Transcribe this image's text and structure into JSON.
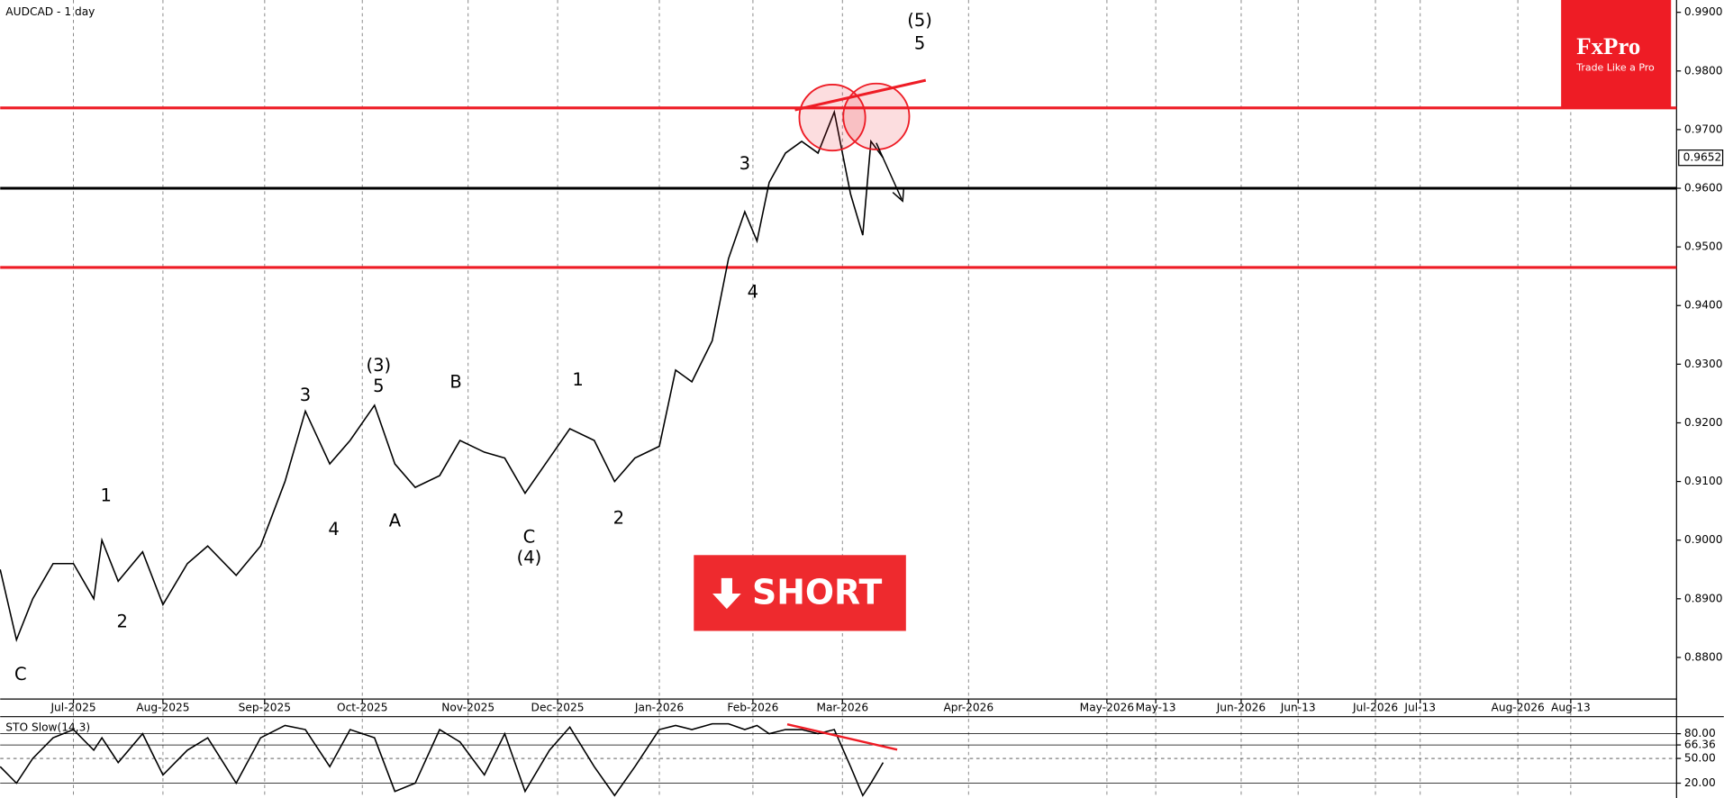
{
  "chart_data": [
    {
      "type": "line",
      "title": "AUDCAD - 1 day",
      "x": [
        -18,
        -14,
        -10,
        -5,
        0,
        5,
        7,
        11,
        17,
        22,
        28,
        33,
        40,
        46,
        52,
        57,
        63,
        68,
        74,
        79,
        84,
        90,
        95,
        101,
        106,
        111,
        117,
        122,
        128,
        133,
        138,
        144,
        148,
        152,
        157,
        161,
        165,
        168,
        171,
        175,
        179,
        183,
        187,
        191,
        194,
        196,
        199
      ],
      "series": [
        {
          "color": "#000000",
          "values": [
            0.895,
            0.883,
            0.89,
            0.896,
            0.896,
            0.89,
            0.9,
            0.893,
            0.898,
            0.889,
            0.896,
            0.899,
            0.894,
            0.899,
            0.91,
            0.922,
            0.913,
            0.917,
            0.923,
            0.913,
            0.909,
            0.911,
            0.917,
            0.915,
            0.914,
            0.908,
            0.914,
            0.919,
            0.917,
            0.91,
            0.914,
            0.916,
            0.929,
            0.927,
            0.934,
            0.948,
            0.956,
            0.951,
            0.961,
            0.966,
            0.968,
            0.966,
            0.973,
            0.959,
            0.952,
            0.968,
            0.9652
          ]
        }
      ],
      "xlim": [
        -18,
        394
      ],
      "ylim": [
        0.8729,
        0.9921
      ],
      "xticks": [
        {
          "value": 0,
          "label": "Jul-2025"
        },
        {
          "value": 22,
          "label": "Aug-2025"
        },
        {
          "value": 47,
          "label": "Sep-2025"
        },
        {
          "value": 71,
          "label": "Oct-2025"
        },
        {
          "value": 97,
          "label": "Nov-2025"
        },
        {
          "value": 119,
          "label": "Dec-2025"
        },
        {
          "value": 144,
          "label": "Jan-2026"
        },
        {
          "value": 167,
          "label": "Feb-2026"
        },
        {
          "value": 189,
          "label": "Mar-2026"
        },
        {
          "value": 220,
          "label": "Apr-2026"
        },
        {
          "value": 254,
          "label": "May-2026"
        },
        {
          "value": 266,
          "label": "May-13"
        },
        {
          "value": 287,
          "label": "Jun-2026"
        },
        {
          "value": 301,
          "label": "Jun-13"
        },
        {
          "value": 320,
          "label": "Jul-2026"
        },
        {
          "value": 331,
          "label": "Jul-13"
        },
        {
          "value": 355,
          "label": "Aug-2026"
        },
        {
          "value": 368,
          "label": "Aug-13"
        }
      ],
      "yticks": [
        {
          "value": 0.88,
          "label": "0.8800"
        },
        {
          "value": 0.89,
          "label": "0.8900"
        },
        {
          "value": 0.9,
          "label": "0.9000"
        },
        {
          "value": 0.91,
          "label": "0.9100"
        },
        {
          "value": 0.92,
          "label": "0.9200"
        },
        {
          "value": 0.93,
          "label": "0.9300"
        },
        {
          "value": 0.94,
          "label": "0.9400"
        },
        {
          "value": 0.95,
          "label": "0.9500"
        },
        {
          "value": 0.96,
          "label": "0.9600"
        },
        {
          "value": 0.97,
          "label": "0.9700"
        },
        {
          "value": 0.98,
          "label": "0.9800"
        },
        {
          "value": 0.99,
          "label": "0.9900"
        }
      ],
      "levels": [
        {
          "value": 0.9737,
          "color": "#ee1c25"
        },
        {
          "value": 0.96,
          "color": "#000000"
        },
        {
          "value": 0.9465,
          "color": "#ee1c25"
        }
      ],
      "last_price": {
        "value": 0.9652,
        "label": "0.9652"
      },
      "grid": true,
      "annotations": [
        {
          "text": "(5)",
          "x": 208,
          "y": 0.9885
        },
        {
          "text": "5",
          "x": 208,
          "y": 0.9846
        },
        {
          "text": "(3)",
          "x": 75,
          "y": 0.9297
        },
        {
          "text": "5",
          "x": 75,
          "y": 0.9261
        },
        {
          "text": "3",
          "x": 57,
          "y": 0.9246
        },
        {
          "text": "4",
          "x": 64,
          "y": 0.9017
        },
        {
          "text": "A",
          "x": 79,
          "y": 0.9032
        },
        {
          "text": "B",
          "x": 94,
          "y": 0.9268
        },
        {
          "text": "C",
          "x": 112,
          "y": 0.9004
        },
        {
          "text": "(4)",
          "x": 112,
          "y": 0.8969
        },
        {
          "text": "1",
          "x": 124,
          "y": 0.9272
        },
        {
          "text": "2",
          "x": 134,
          "y": 0.9036
        },
        {
          "text": "3",
          "x": 165,
          "y": 0.9641
        },
        {
          "text": "4",
          "x": 167,
          "y": 0.9422
        },
        {
          "text": "1",
          "x": 8,
          "y": 0.9075
        },
        {
          "text": "2",
          "x": 12,
          "y": 0.886
        },
        {
          "text": "C",
          "x": -13,
          "y": 0.877
        }
      ]
    },
    {
      "type": "line",
      "title": "STO Slow(14,3)",
      "x": [
        -18,
        -14,
        -10,
        -5,
        0,
        5,
        7,
        11,
        17,
        22,
        28,
        33,
        40,
        46,
        52,
        57,
        63,
        68,
        74,
        79,
        84,
        90,
        95,
        101,
        106,
        111,
        117,
        122,
        128,
        133,
        138,
        144,
        148,
        152,
        157,
        161,
        165,
        168,
        171,
        175,
        179,
        183,
        187,
        191,
        194,
        196,
        199
      ],
      "series": [
        {
          "color": "#000000",
          "values": [
            40,
            20,
            50,
            75,
            85,
            60,
            75,
            45,
            80,
            30,
            60,
            75,
            20,
            75,
            90,
            85,
            40,
            85,
            75,
            10,
            20,
            85,
            70,
            30,
            80,
            10,
            60,
            88,
            40,
            5,
            40,
            85,
            90,
            85,
            92,
            92,
            85,
            90,
            80,
            85,
            85,
            80,
            85,
            40,
            5,
            20,
            45
          ]
        }
      ],
      "xlim": [
        -18,
        394
      ],
      "ylim": [
        2,
        98
      ],
      "yticks": [
        {
          "value": 20,
          "label": "20.00"
        },
        {
          "value": 50,
          "label": "50.00"
        },
        {
          "value": 66.36,
          "label": "66.36"
        },
        {
          "value": 80,
          "label": "80.00"
        }
      ]
    }
  ],
  "signal": "SHORT",
  "brand": {
    "name": "FxPro",
    "tagline": "Trade Like a Pro"
  }
}
